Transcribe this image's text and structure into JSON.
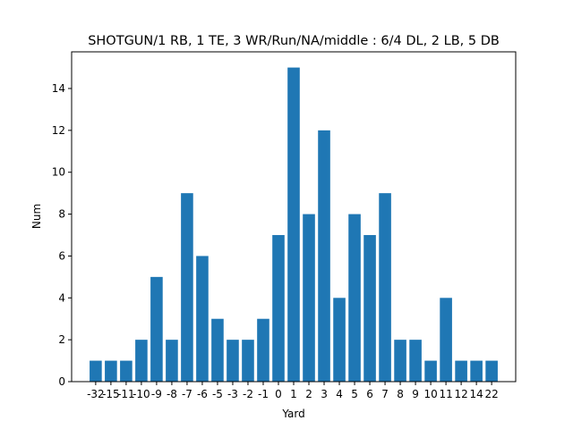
{
  "chart_data": {
    "type": "bar",
    "title": "SHOTGUN/1 RB, 1 TE, 3 WR/Run/NA/middle : 6/4 DL, 2 LB, 5 DB",
    "xlabel": "Yard",
    "ylabel": "Num",
    "categories": [
      "-32",
      "-15",
      "-11",
      "-10",
      "-9",
      "-8",
      "-7",
      "-6",
      "-5",
      "-3",
      "-2",
      "-1",
      "0",
      "1",
      "2",
      "3",
      "4",
      "5",
      "6",
      "7",
      "8",
      "9",
      "10",
      "11",
      "12",
      "14",
      "22"
    ],
    "values": [
      1,
      1,
      1,
      2,
      5,
      2,
      9,
      6,
      3,
      2,
      2,
      3,
      7,
      15,
      8,
      12,
      4,
      8,
      7,
      9,
      2,
      2,
      1,
      4,
      1,
      1,
      1
    ],
    "ylim": [
      0,
      15.75
    ],
    "yticks": [
      0,
      2,
      4,
      6,
      8,
      10,
      12,
      14
    ],
    "bar_color": "#1f77b4",
    "grid": false,
    "legend": "none"
  }
}
